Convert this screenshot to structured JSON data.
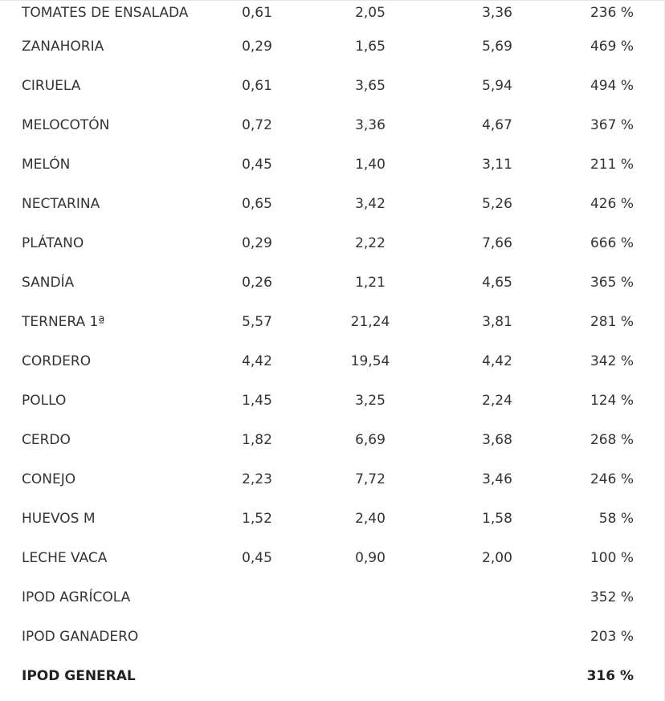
{
  "table": {
    "rows": [
      {
        "product": "TOMATES DE ENSALADA",
        "origin": "0,61",
        "destination": "2,05",
        "difference": "3,36",
        "percent": "236 %"
      },
      {
        "product": "ZANAHORIA",
        "origin": "0,29",
        "destination": "1,65",
        "difference": "5,69",
        "percent": "469 %"
      },
      {
        "product": "CIRUELA",
        "origin": "0,61",
        "destination": "3,65",
        "difference": "5,94",
        "percent": "494 %"
      },
      {
        "product": "MELOCOTÓN",
        "origin": "0,72",
        "destination": "3,36",
        "difference": "4,67",
        "percent": "367 %"
      },
      {
        "product": "MELÓN",
        "origin": "0,45",
        "destination": "1,40",
        "difference": "3,11",
        "percent": "211 %"
      },
      {
        "product": "NECTARINA",
        "origin": "0,65",
        "destination": "3,42",
        "difference": "5,26",
        "percent": "426 %"
      },
      {
        "product": "PLÁTANO",
        "origin": "0,29",
        "destination": "2,22",
        "difference": "7,66",
        "percent": "666 %"
      },
      {
        "product": "SANDÍA",
        "origin": "0,26",
        "destination": "1,21",
        "difference": "4,65",
        "percent": "365 %"
      },
      {
        "product": "TERNERA 1ª",
        "origin": "5,57",
        "destination": "21,24",
        "difference": "3,81",
        "percent": "281 %"
      },
      {
        "product": "CORDERO",
        "origin": "4,42",
        "destination": "19,54",
        "difference": "4,42",
        "percent": "342 %"
      },
      {
        "product": "POLLO",
        "origin": "1,45",
        "destination": "3,25",
        "difference": "2,24",
        "percent": "124 %"
      },
      {
        "product": "CERDO",
        "origin": "1,82",
        "destination": "6,69",
        "difference": "3,68",
        "percent": "268 %"
      },
      {
        "product": "CONEJO",
        "origin": "2,23",
        "destination": "7,72",
        "difference": "3,46",
        "percent": "246 %"
      },
      {
        "product": "HUEVOS M",
        "origin": "1,52",
        "destination": "2,40",
        "difference": "1,58",
        "percent": "58 %"
      },
      {
        "product": "LECHE VACA",
        "origin": "0,45",
        "destination": "0,90",
        "difference": "2,00",
        "percent": "100 %"
      },
      {
        "product": "IPOD AGRÍCOLA",
        "origin": "",
        "destination": "",
        "difference": "",
        "percent": "352 %"
      },
      {
        "product": "IPOD GANADERO",
        "origin": "",
        "destination": "",
        "difference": "",
        "percent": "203 %"
      },
      {
        "product": "IPOD GENERAL",
        "origin": "",
        "destination": "",
        "difference": "",
        "percent": "316 %",
        "bold": true
      }
    ]
  }
}
